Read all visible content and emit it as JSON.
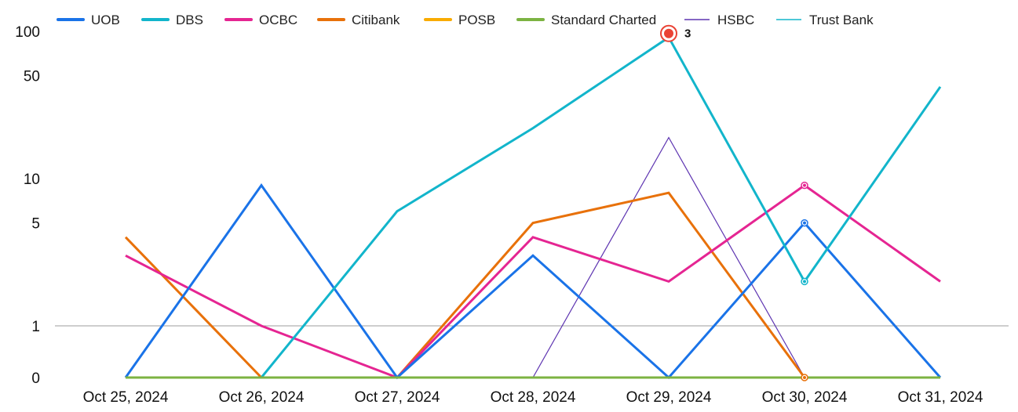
{
  "chart_data": {
    "type": "line",
    "title": "",
    "xlabel": "",
    "ylabel": "",
    "y_scale": "log",
    "y_ticks": [
      0,
      1,
      5,
      10,
      50,
      100
    ],
    "y_tick_labels": [
      "0",
      "1",
      "5",
      "10",
      "50",
      "100"
    ],
    "legend_position": "top",
    "categories": [
      "Oct 25, 2024",
      "Oct 26, 2024",
      "Oct 27, 2024",
      "Oct 28, 2024",
      "Oct 29, 2024",
      "Oct 30, 2024",
      "Oct 31, 2024"
    ],
    "series": [
      {
        "name": "UOB",
        "color": "#1a73e8",
        "values": [
          0,
          9,
          0,
          3,
          0,
          5,
          0
        ]
      },
      {
        "name": "DBS",
        "color": "#12b5cb",
        "values": [
          0,
          0,
          6,
          22,
          91,
          2,
          42
        ]
      },
      {
        "name": "OCBC",
        "color": "#e52592",
        "values": [
          3,
          1,
          0,
          4,
          2,
          9,
          2
        ]
      },
      {
        "name": "Citibank",
        "color": "#e8710a",
        "values": [
          4,
          0,
          0,
          5,
          8,
          0,
          0
        ]
      },
      {
        "name": "POSB",
        "color": "#f9ab00",
        "values": [
          0,
          0,
          0,
          0,
          0,
          0,
          0
        ]
      },
      {
        "name": "Standard Charted",
        "color": "#7cb342",
        "values": [
          0,
          0,
          0,
          0,
          0,
          0,
          0
        ]
      },
      {
        "name": "HSBC",
        "color": "#5e35b1",
        "values": [
          0,
          0,
          0,
          0,
          19,
          0,
          0
        ]
      },
      {
        "name": "Trust Bank",
        "color": "#12b5cb",
        "values": [
          0,
          0,
          0,
          0,
          0,
          0,
          0
        ]
      }
    ],
    "annotations": [
      {
        "series": "DBS",
        "category": "Oct 29, 2024",
        "label": "3",
        "marker_color": "#ea4335"
      }
    ]
  }
}
